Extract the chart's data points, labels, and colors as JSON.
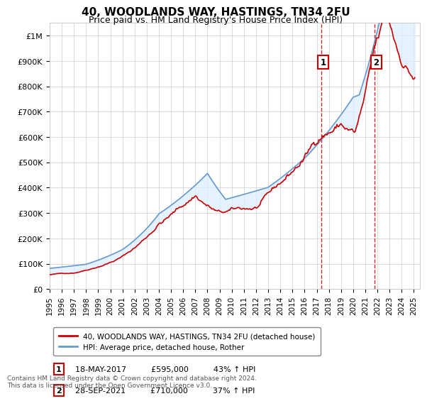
{
  "title": "40, WOODLANDS WAY, HASTINGS, TN34 2FU",
  "subtitle": "Price paid vs. HM Land Registry's House Price Index (HPI)",
  "ylabel_ticks": [
    "£0",
    "£100K",
    "£200K",
    "£300K",
    "£400K",
    "£500K",
    "£600K",
    "£700K",
    "£800K",
    "£900K",
    "£1M"
  ],
  "ytick_values": [
    0,
    100000,
    200000,
    300000,
    400000,
    500000,
    600000,
    700000,
    800000,
    900000,
    1000000
  ],
  "ylim": [
    0,
    1050000
  ],
  "xlim_start": 1995.0,
  "xlim_end": 2025.5,
  "marker1_x": 2017.38,
  "marker1_y": 595000,
  "marker1_label": "1",
  "marker1_date": "18-MAY-2017",
  "marker1_price": "£595,000",
  "marker1_hpi": "43% ↑ HPI",
  "marker2_x": 2021.75,
  "marker2_y": 710000,
  "marker2_label": "2",
  "marker2_date": "28-SEP-2021",
  "marker2_price": "£710,000",
  "marker2_hpi": "37% ↑ HPI",
  "line1_color": "#cc0000",
  "line2_color": "#6699cc",
  "shading_color": "#ddeeff",
  "grid_color": "#cccccc",
  "background_color": "#ffffff",
  "legend1_label": "40, WOODLANDS WAY, HASTINGS, TN34 2FU (detached house)",
  "legend2_label": "HPI: Average price, detached house, Rother",
  "footnote": "Contains HM Land Registry data © Crown copyright and database right 2024.\nThis data is licensed under the Open Government Licence v3.0."
}
